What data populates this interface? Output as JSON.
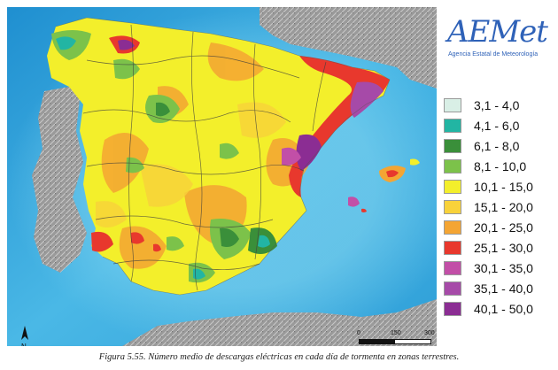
{
  "logo": {
    "word": "AEMet",
    "subtitle": "Agencia Estatal de Meteorología"
  },
  "legend": {
    "items": [
      {
        "label": "3,1 - 4,0",
        "color": "#d9efe6"
      },
      {
        "label": "4,1 - 6,0",
        "color": "#22b5a3"
      },
      {
        "label": "6,1 - 8,0",
        "color": "#3a8f3a"
      },
      {
        "label": "8,1 - 10,0",
        "color": "#7cc24a"
      },
      {
        "label": "10,1 - 15,0",
        "color": "#f3ef2b"
      },
      {
        "label": "15,1 - 20,0",
        "color": "#f8d23a"
      },
      {
        "label": "20,1 - 25,0",
        "color": "#f4a533"
      },
      {
        "label": "25,1 - 30,0",
        "color": "#e8382d"
      },
      {
        "label": "30,1 - 35,0",
        "color": "#c24fa7"
      },
      {
        "label": "35,1 - 40,0",
        "color": "#a64aa8"
      },
      {
        "label": "40,1 - 50,0",
        "color": "#8b2d93"
      }
    ]
  },
  "scale": {
    "labels": [
      "0",
      "150",
      "300"
    ]
  },
  "north_label": "N",
  "caption": "Figura 5.55.    Número medio de descargas eléctricas en cada día de tormenta en zonas terrestres."
}
